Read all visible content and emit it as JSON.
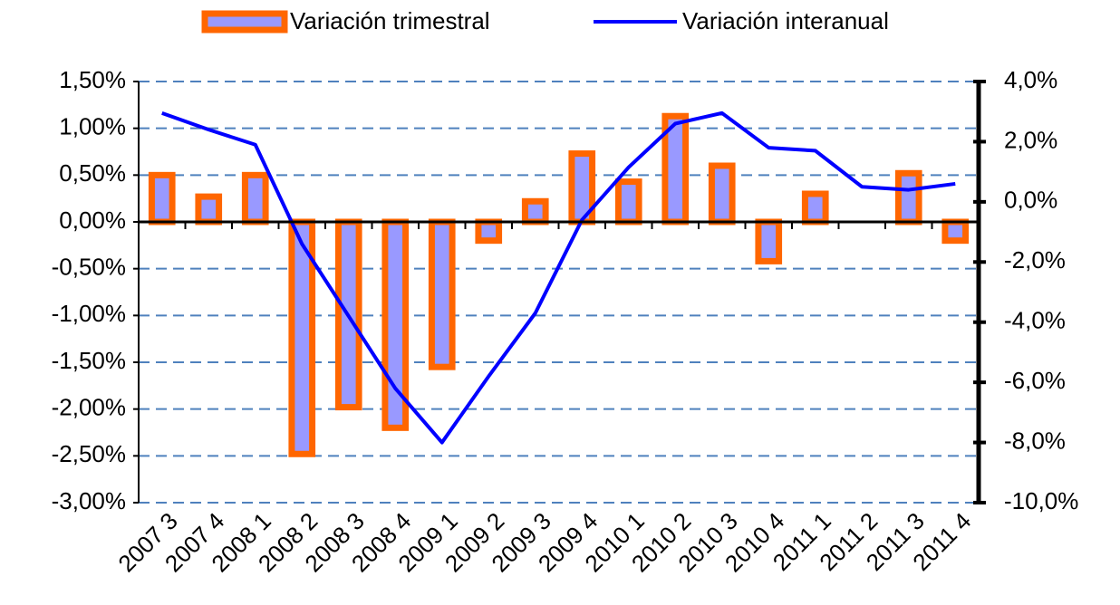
{
  "chart_data": {
    "type": "bar",
    "categories": [
      "2007 3",
      "2007 4",
      "2008 1",
      "2008 2",
      "2008 3",
      "2008 4",
      "2009 1",
      "2009 2",
      "2009 3",
      "2009 4",
      "2010 1",
      "2010 2",
      "2010 3",
      "2010 4",
      "2011 1",
      "2011 2",
      "2011 3",
      "2011 4"
    ],
    "series": [
      {
        "name": "Variación trimestral",
        "type": "bar",
        "color": "#9999ff",
        "edgecolor": "#ff6600",
        "values": [
          0.5,
          0.27,
          0.5,
          -2.48,
          -1.98,
          -2.2,
          -1.55,
          -0.2,
          0.22,
          0.73,
          0.43,
          1.13,
          0.6,
          -0.42,
          0.3,
          0,
          0.52,
          -0.2
        ]
      },
      {
        "name": "Variación interanual",
        "type": "line",
        "color": "#0000ff",
        "axis": "y2",
        "values": [
          2.95,
          2.4,
          1.9,
          -1.4,
          -3.8,
          -6.2,
          -8.0,
          -5.8,
          -3.7,
          -0.6,
          1.15,
          2.6,
          2.95,
          1.8,
          1.7,
          0.5,
          0.4,
          0.6
        ]
      }
    ],
    "ylim": [
      -3,
      1.5
    ],
    "yticks": [
      {
        "value": 1.5,
        "label": "1,50%"
      },
      {
        "value": 1,
        "label": "1,00%"
      },
      {
        "value": 0.5,
        "label": "0,50%"
      },
      {
        "value": 0,
        "label": "0,00%"
      },
      {
        "value": -0.5,
        "label": "-0,50%"
      },
      {
        "value": -1,
        "label": "-1,00%"
      },
      {
        "value": -1.5,
        "label": "-1,50%"
      },
      {
        "value": -2,
        "label": "-2,00%"
      },
      {
        "value": -2.5,
        "label": "-2,50%"
      },
      {
        "value": -3,
        "label": "-3,00%"
      }
    ],
    "y2lim": [
      -10,
      4
    ],
    "y2ticks": [
      {
        "value": 4,
        "label": "4,0%"
      },
      {
        "value": 2,
        "label": "2,0%"
      },
      {
        "value": 0,
        "label": "0,0%"
      },
      {
        "value": -2,
        "label": "-2,0%"
      },
      {
        "value": -4,
        "label": "-4,0%"
      },
      {
        "value": -6,
        "label": "-6,0%"
      },
      {
        "value": -8,
        "label": "-8,0%"
      },
      {
        "value": -10,
        "label": "-10,0%"
      }
    ],
    "grid": true,
    "legend": "top"
  }
}
